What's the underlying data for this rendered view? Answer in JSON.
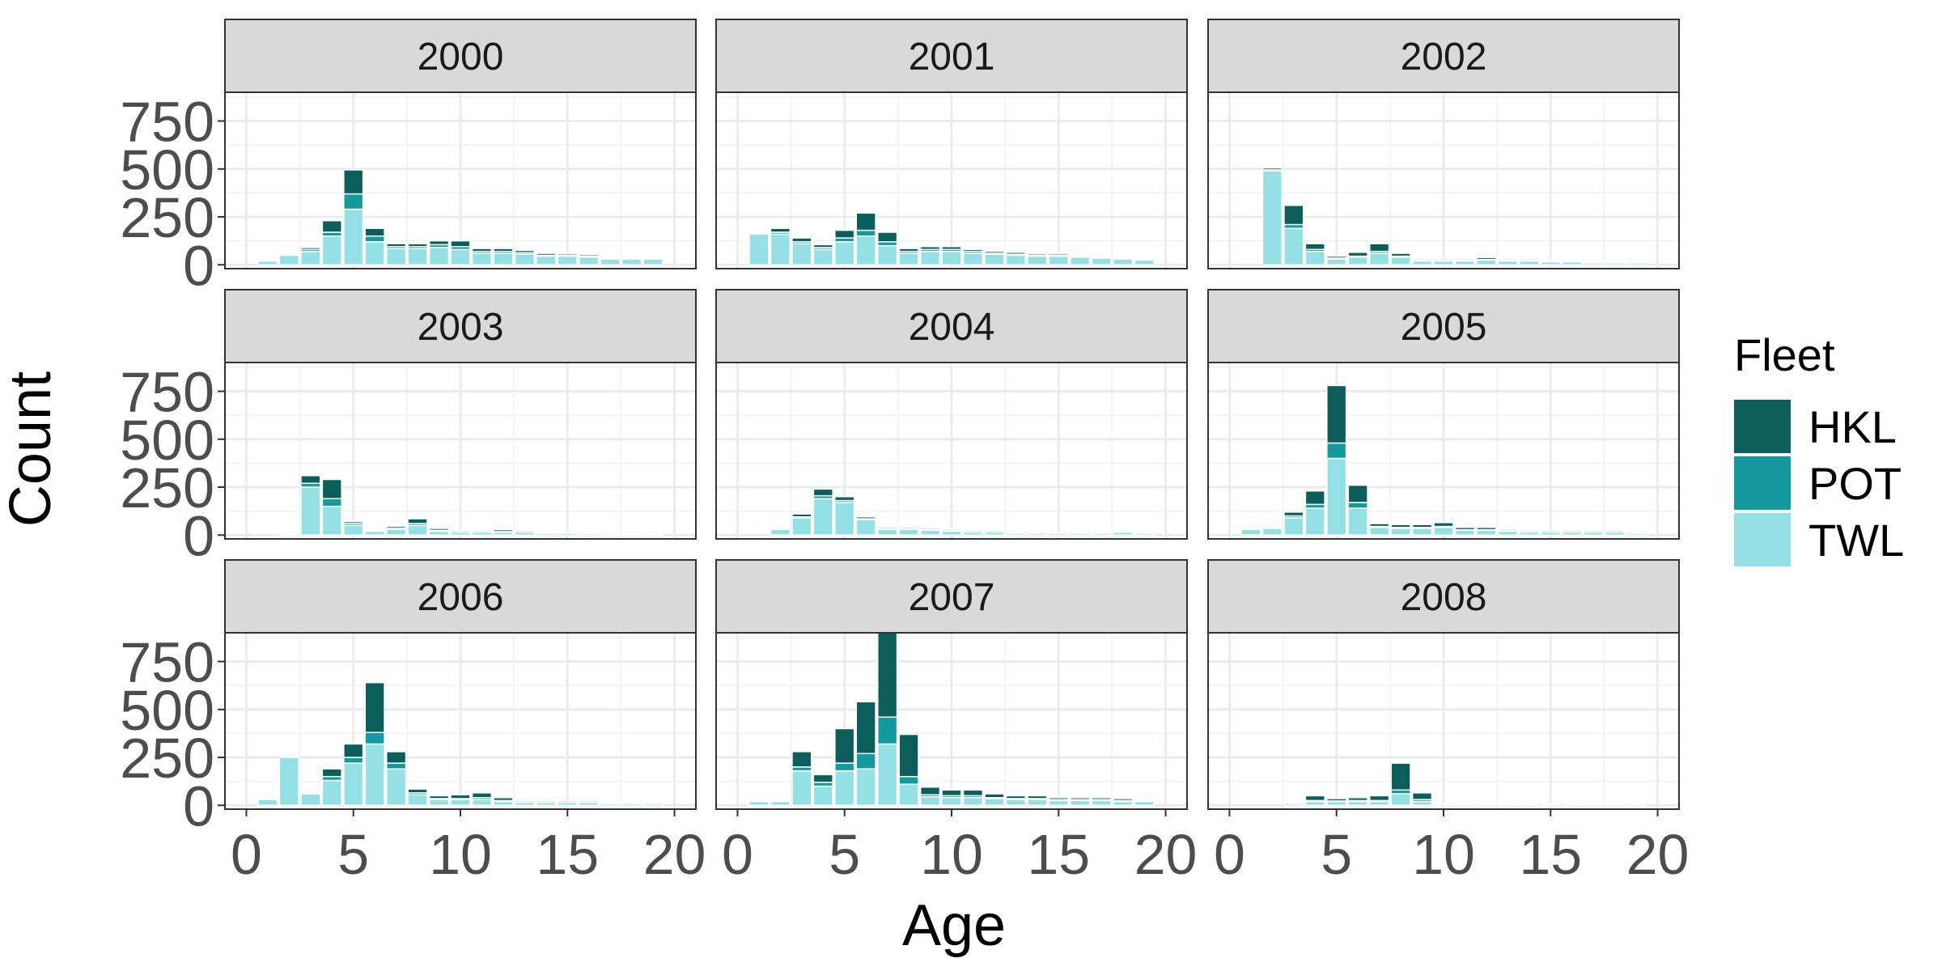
{
  "chart_data": {
    "type": "bar",
    "stacked": true,
    "facet_by": "year",
    "facet_columns": 3,
    "xlabel": "Age",
    "ylabel": "Count",
    "xlim": [
      -1,
      21
    ],
    "ylim": [
      -20,
      900
    ],
    "x_ticks": [
      0,
      5,
      10,
      15,
      20
    ],
    "y_ticks": [
      0,
      250,
      500,
      750
    ],
    "grid": true,
    "legend": {
      "title": "Fleet",
      "position": "right",
      "entries": [
        {
          "name": "HKL",
          "color": "#0b5e5c"
        },
        {
          "name": "POT",
          "color": "#14999e"
        },
        {
          "name": "TWL",
          "color": "#95e0e4"
        }
      ]
    },
    "series_names": [
      "TWL",
      "POT",
      "HKL"
    ],
    "ages": [
      1,
      2,
      3,
      4,
      5,
      6,
      7,
      8,
      9,
      10,
      11,
      12,
      13,
      14,
      15,
      16,
      17,
      18,
      19
    ],
    "facets": [
      {
        "label": "2000",
        "TWL": [
          20,
          50,
          70,
          150,
          290,
          120,
          85,
          85,
          90,
          80,
          60,
          60,
          55,
          45,
          45,
          40,
          30,
          30,
          30
        ],
        "POT": [
          0,
          0,
          10,
          20,
          80,
          30,
          10,
          10,
          15,
          15,
          10,
          10,
          8,
          5,
          5,
          5,
          5,
          5,
          5
        ],
        "HKL": [
          5,
          5,
          10,
          60,
          125,
          40,
          15,
          15,
          20,
          30,
          15,
          15,
          12,
          10,
          8,
          8,
          5,
          5,
          5
        ]
      },
      {
        "label": "2001",
        "TWL": [
          160,
          160,
          110,
          80,
          120,
          150,
          100,
          60,
          70,
          70,
          60,
          55,
          50,
          45,
          45,
          40,
          35,
          30,
          25
        ],
        "POT": [
          0,
          10,
          10,
          10,
          20,
          30,
          20,
          10,
          10,
          10,
          10,
          5,
          5,
          5,
          5,
          5,
          5,
          5,
          5
        ],
        "HKL": [
          0,
          20,
          20,
          15,
          40,
          90,
          50,
          15,
          15,
          15,
          10,
          10,
          10,
          8,
          8,
          5,
          5,
          5,
          5
        ]
      },
      {
        "label": "2002",
        "TWL": [
          0,
          490,
          190,
          70,
          30,
          40,
          60,
          40,
          20,
          20,
          20,
          25,
          20,
          20,
          15,
          15,
          10,
          10,
          10
        ],
        "POT": [
          0,
          5,
          20,
          10,
          5,
          5,
          10,
          5,
          3,
          3,
          3,
          3,
          3,
          3,
          3,
          3,
          2,
          2,
          2
        ],
        "HKL": [
          0,
          10,
          100,
          30,
          10,
          20,
          40,
          15,
          7,
          7,
          7,
          10,
          7,
          7,
          5,
          5,
          5,
          5,
          3
        ]
      },
      {
        "label": "2003",
        "TWL": [
          0,
          5,
          250,
          150,
          50,
          20,
          30,
          50,
          20,
          15,
          15,
          15,
          15,
          10,
          10,
          8,
          5,
          5,
          5
        ],
        "POT": [
          0,
          0,
          20,
          40,
          10,
          5,
          5,
          10,
          5,
          3,
          3,
          3,
          3,
          2,
          2,
          2,
          2,
          2,
          2
        ],
        "HKL": [
          0,
          0,
          40,
          100,
          10,
          5,
          10,
          25,
          10,
          7,
          7,
          10,
          7,
          3,
          3,
          3,
          3,
          3,
          3
        ]
      },
      {
        "label": "2004",
        "TWL": [
          0,
          30,
          90,
          190,
          170,
          80,
          30,
          30,
          25,
          20,
          15,
          15,
          10,
          10,
          10,
          10,
          10,
          15,
          10
        ],
        "POT": [
          0,
          0,
          5,
          15,
          10,
          5,
          3,
          3,
          3,
          3,
          3,
          3,
          2,
          2,
          2,
          2,
          2,
          2,
          2
        ],
        "HKL": [
          0,
          5,
          15,
          35,
          20,
          10,
          7,
          7,
          7,
          7,
          7,
          7,
          3,
          3,
          3,
          3,
          3,
          3,
          3
        ]
      },
      {
        "label": "2005",
        "TWL": [
          30,
          35,
          90,
          140,
          400,
          140,
          40,
          35,
          35,
          40,
          25,
          25,
          20,
          15,
          15,
          15,
          15,
          15,
          10
        ],
        "POT": [
          0,
          0,
          10,
          20,
          80,
          30,
          5,
          5,
          5,
          5,
          3,
          3,
          3,
          3,
          3,
          3,
          3,
          3,
          2
        ],
        "HKL": [
          0,
          0,
          20,
          70,
          300,
          90,
          15,
          15,
          15,
          20,
          12,
          12,
          7,
          7,
          7,
          7,
          7,
          7,
          5
        ]
      },
      {
        "label": "2006",
        "TWL": [
          30,
          250,
          60,
          130,
          220,
          320,
          190,
          55,
          30,
          30,
          30,
          20,
          15,
          15,
          15,
          15,
          10,
          10,
          10
        ],
        "POT": [
          0,
          0,
          5,
          20,
          30,
          60,
          30,
          10,
          5,
          5,
          10,
          5,
          3,
          3,
          3,
          3,
          2,
          2,
          2
        ],
        "HKL": [
          0,
          0,
          5,
          40,
          70,
          260,
          60,
          20,
          15,
          20,
          25,
          15,
          7,
          7,
          7,
          7,
          5,
          5,
          5
        ]
      },
      {
        "label": "2007",
        "TWL": [
          20,
          20,
          180,
          100,
          180,
          190,
          320,
          110,
          45,
          40,
          40,
          35,
          30,
          30,
          25,
          25,
          25,
          20,
          20
        ],
        "POT": [
          0,
          0,
          20,
          20,
          40,
          80,
          140,
          40,
          10,
          10,
          10,
          5,
          5,
          5,
          5,
          5,
          5,
          5,
          5
        ],
        "HKL": [
          5,
          5,
          80,
          40,
          180,
          270,
          440,
          220,
          40,
          30,
          30,
          20,
          15,
          15,
          10,
          10,
          10,
          10,
          5
        ]
      },
      {
        "label": "2008",
        "TWL": [
          0,
          0,
          10,
          20,
          20,
          20,
          20,
          60,
          20,
          5,
          5,
          5,
          5,
          5,
          5,
          5,
          5,
          5,
          5
        ],
        "POT": [
          0,
          0,
          0,
          5,
          3,
          5,
          5,
          20,
          10,
          2,
          2,
          2,
          2,
          2,
          2,
          2,
          2,
          2,
          2
        ],
        "HKL": [
          0,
          0,
          5,
          25,
          12,
          15,
          25,
          140,
          35,
          5,
          5,
          5,
          5,
          5,
          5,
          5,
          5,
          5,
          5
        ]
      }
    ]
  }
}
